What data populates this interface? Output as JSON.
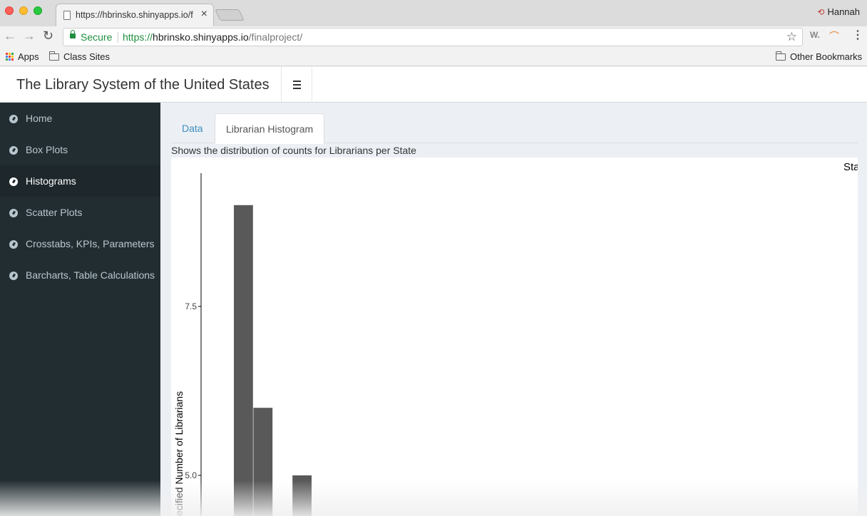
{
  "browser": {
    "tab_title": "https://hbrinsko.shinyapps.io/f",
    "tab_close": "×",
    "profile_name": "Hannah",
    "secure_label": "Secure",
    "url_scheme": "https://",
    "url_host": "hbrinsko.shinyapps.io",
    "url_path": "/finalproject/",
    "bookmarks": [
      {
        "label": "Apps",
        "icon": "apps-grid-icon"
      },
      {
        "label": "Class Sites",
        "icon": "folder-icon"
      }
    ],
    "other_bookmarks": "Other Bookmarks",
    "extension_label": "W."
  },
  "app": {
    "title": "The Library System of the United States",
    "sidebar": [
      {
        "label": "Home",
        "active": false
      },
      {
        "label": "Box Plots",
        "active": false
      },
      {
        "label": "Histograms",
        "active": true
      },
      {
        "label": "Scatter Plots",
        "active": false
      },
      {
        "label": "Crosstabs, KPIs, Parameters",
        "active": false
      },
      {
        "label": "Barcharts, Table Calculations",
        "active": false
      }
    ],
    "tabs": [
      {
        "label": "Data",
        "active": false
      },
      {
        "label": "Librarian Histogram",
        "active": true
      }
    ],
    "description": "Shows the distribution of counts for Librarians per State"
  },
  "colors": {
    "sidebar_bg": "#222d32",
    "sidebar_active_bg": "#1e282c",
    "link": "#3c8dbc",
    "bar_fill": "#595959",
    "secure_green": "#1e8e3e"
  },
  "chart_data": {
    "type": "bar",
    "title": "",
    "legend_title_partial": "Sta",
    "ylabel": "ecified Number of Librarians",
    "xlabel": "",
    "yticks": [
      "5.0",
      "7.5"
    ],
    "ylim_visible": [
      4.45,
      9.5
    ],
    "bars": [
      {
        "value": 9.0
      },
      {
        "value": 6.0
      },
      {
        "value": 0
      },
      {
        "value": 5.0
      }
    ]
  }
}
